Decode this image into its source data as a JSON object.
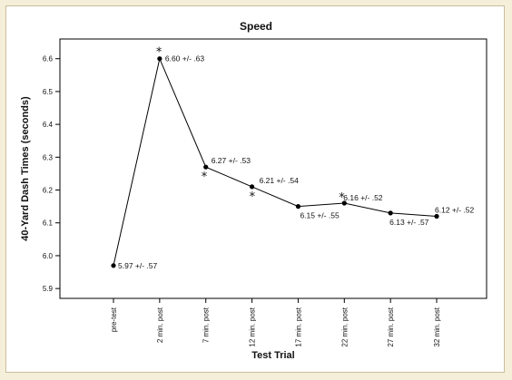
{
  "chart_data": {
    "type": "line",
    "title": "Speed",
    "xlabel": "Test Trial",
    "ylabel": "40-Yard Dash Times (seconds)",
    "categories": [
      "pre-test",
      "2 min. post",
      "7 min. post",
      "12 min. post",
      "17 min. post",
      "22 min. post",
      "27 min. post",
      "32 min. post"
    ],
    "yticks": [
      "5.9",
      "6.0",
      "6.1",
      "6.2",
      "6.3",
      "6.4",
      "6.5",
      "6.6"
    ],
    "ylim": [
      5.87,
      6.66
    ],
    "grid": false,
    "series": [
      {
        "values": [
          5.97,
          6.6,
          6.27,
          6.21,
          6.15,
          6.16,
          6.13,
          6.12
        ],
        "labels": [
          "5.97 +/- .57",
          "6.60 +/- .63",
          "6.27 +/- .53",
          "6.21 +/- .54",
          "6.15 +/- .55",
          "6.16 +/- .52",
          "6.13 +/- .57",
          "6.12 +/- .52"
        ]
      }
    ],
    "significance_marks": [
      {
        "category": "2 min. post",
        "symbol": "*"
      },
      {
        "category": "7 min. post",
        "symbol": "*"
      },
      {
        "category": "12 min. post",
        "symbol": "*"
      },
      {
        "category": "22 min. post",
        "symbol": "*"
      }
    ],
    "colors": {
      "line": "#000000",
      "background": "#f5efd9",
      "panel": "#ffffff"
    }
  }
}
